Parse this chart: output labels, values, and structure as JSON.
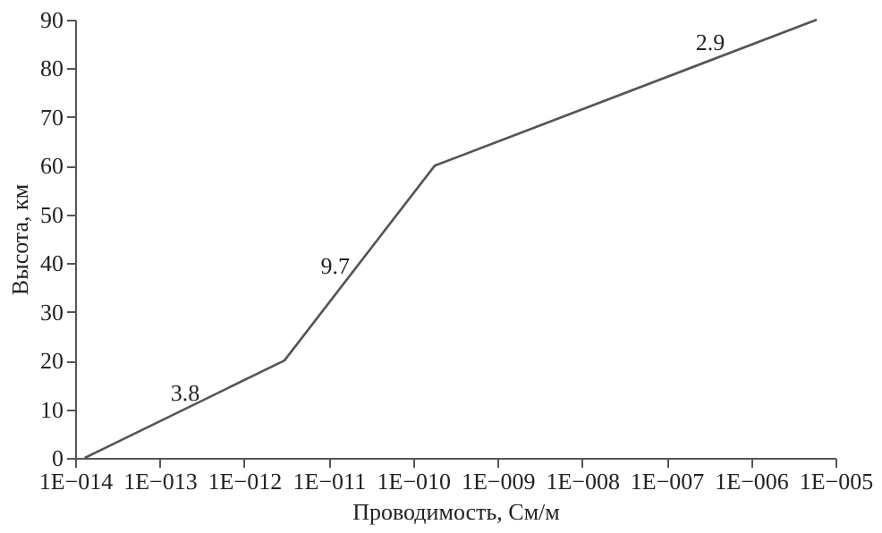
{
  "chart_data": {
    "type": "line",
    "xlabel": "Проводимость, См/м",
    "ylabel": "Высота, км",
    "x": [
      1.3e-14,
      3e-12,
      1.8e-10,
      6e-06
    ],
    "series": [
      {
        "color": "#555555",
        "values": [
          0,
          20,
          60,
          90
        ]
      }
    ],
    "log": "x",
    "xlim": [
      1e-14,
      1e-05
    ],
    "xticks": [
      {
        "value": 1e-14,
        "label": "1E−014"
      },
      {
        "value": 1e-13,
        "label": "1E−013"
      },
      {
        "value": 1e-12,
        "label": "1E−012"
      },
      {
        "value": 1e-11,
        "label": "1E−011"
      },
      {
        "value": 1e-10,
        "label": "1E−010"
      },
      {
        "value": 1e-09,
        "label": "1E−009"
      },
      {
        "value": 1e-08,
        "label": "1E−008"
      },
      {
        "value": 1e-07,
        "label": "1E−007"
      },
      {
        "value": 1e-06,
        "label": "1E−006"
      },
      {
        "value": 1e-05,
        "label": "1E−005"
      }
    ],
    "ylim": [
      0,
      90
    ],
    "yticks": [
      0,
      10,
      20,
      30,
      40,
      50,
      60,
      70,
      80,
      90
    ],
    "annotations": [
      {
        "text": "3.8",
        "x": 2e-13,
        "y": 10
      },
      {
        "text": "9.7",
        "x": 1.2e-11,
        "y": 36
      },
      {
        "text": "2.9",
        "x": 3.3e-07,
        "y": 82
      }
    ],
    "grid": false,
    "marker": "none",
    "line_style": "solid"
  }
}
